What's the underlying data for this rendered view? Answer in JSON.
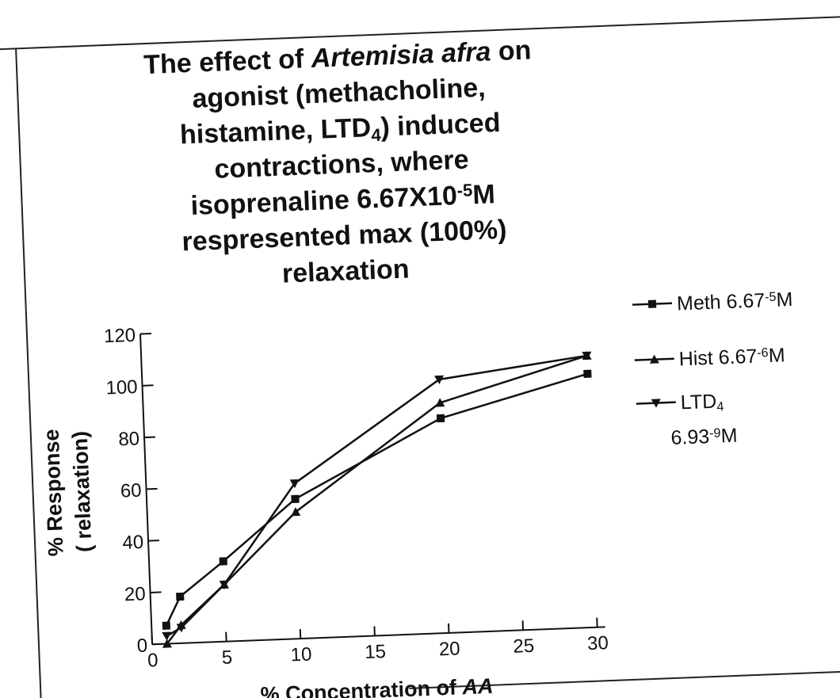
{
  "chart_data": {
    "type": "line",
    "title_lines": [
      [
        {
          "text": "The effect of "
        },
        {
          "text": "Artemisia afra",
          "style": "italic"
        },
        {
          "text": " on"
        }
      ],
      [
        {
          "text": "agonist (methacholine,"
        }
      ],
      [
        {
          "text": "histamine, LTD"
        },
        {
          "text": "4",
          "style": "sub"
        },
        {
          "text": ") induced"
        }
      ],
      [
        {
          "text": "contractions, where"
        }
      ],
      [
        {
          "text": "isoprenaline 6.67X10"
        },
        {
          "text": "-5",
          "style": "sup"
        },
        {
          "text": "M"
        }
      ],
      [
        {
          "text": "respresented max (100%)"
        }
      ],
      [
        {
          "text": "relaxation"
        }
      ]
    ],
    "xlabel": [
      {
        "text": "% Concentration of "
      },
      {
        "text": "AA",
        "style": "italic"
      }
    ],
    "ylabel": [
      "% Response",
      "( relaxation)"
    ],
    "x": [
      1,
      2,
      5,
      10,
      20,
      30
    ],
    "series": [
      {
        "name": [
          [
            {
              "text": "Meth 6.67"
            },
            {
              "text": "-5",
              "style": "sup"
            },
            {
              "text": "M"
            }
          ]
        ],
        "color": "#111111",
        "marker": "square",
        "values": [
          7,
          18,
          31,
          54,
          83,
          98
        ]
      },
      {
        "name": [
          [
            {
              "text": "Hist 6.67"
            },
            {
              "text": "-6",
              "style": "sup"
            },
            {
              "text": "M"
            }
          ]
        ],
        "color": "#111111",
        "marker": "triangle-up",
        "values": [
          0,
          7,
          22,
          49,
          89,
          105
        ]
      },
      {
        "name": [
          [
            {
              "text": "LTD"
            },
            {
              "text": "4",
              "style": "sub"
            }
          ],
          [
            {
              "text": "6.93"
            },
            {
              "text": "-9",
              "style": "sup"
            },
            {
              "text": "M"
            }
          ]
        ],
        "color": "#111111",
        "marker": "triangle-down",
        "values": [
          3,
          6,
          22,
          60,
          98,
          105
        ]
      }
    ],
    "xlim": [
      0,
      30
    ],
    "xticks": [
      0,
      5,
      10,
      15,
      20,
      25,
      30
    ],
    "ylim": [
      0,
      120
    ],
    "yticks": [
      0,
      20,
      40,
      60,
      80,
      100,
      120
    ],
    "grid": false,
    "legend": "right"
  }
}
